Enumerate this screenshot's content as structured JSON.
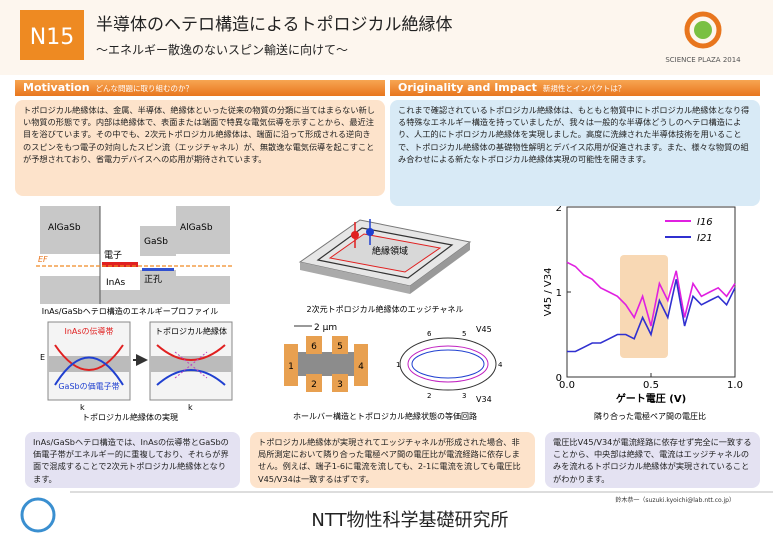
{
  "header": {
    "badge": "N15",
    "title": "半導体のヘテロ構造によるトポロジカル絶縁体",
    "subtitle": "～エネルギー散逸のないスピン輸送に向けて～",
    "logo": "SCIENCE PLAZA 2014"
  },
  "motivation": {
    "heading": "Motivation",
    "subheading": "どんな問題に取り組むのか？",
    "text": "トポロジカル絶縁体は、金属、半導体、絶縁体といった従来の物質の分類に当てはまらない新しい物質の形態です。内部は絶縁体で、表面または端面で特異な電気伝導を示すことから、最近注目を浴びています。その中でも、2次元トポロジカル絶縁体は、端面に沿って形成される逆向きのスピンをもつ電子の対向したスピン流（エッジチャネル）が、無散逸な電気伝導を起こすことが予想されており、省電力デバイスへの応用が期待されています。"
  },
  "originality": {
    "heading": "Originality and Impact",
    "subheading": "新規性とインパクトは？",
    "text": "これまで確認されているトポロジカル絶縁体は、もともと物質中にトポロジカル絶縁体となり得る特殊なエネルギー構造を持っていましたが、我々は一般的な半導体どうしのヘテロ構造により、人工的にトポロジカル絶縁体を実現しました。高度に洗練された半導体技術を用いることで、トポロジカル絶縁体の基礎物性解明とデバイス応用が促進されます。また、様々な物質の組み合わせによる新たなトポロジカル絶縁体実現の可能性を開きます。"
  },
  "figures": {
    "band": {
      "labels": [
        "AlGaSb",
        "GaSb",
        "AlGaSb",
        "電子",
        "正孔",
        "InAs",
        "EF"
      ],
      "caption": "InAs/GaSbヘテロ構造のエネルギープロファイル"
    },
    "topo": {
      "labels": [
        "InAsの伝導帯",
        "GaSbの価電子帯",
        "E",
        "k",
        "トポロジカル絶縁体",
        "k"
      ],
      "caption": "トポロジカル絶縁体の実現"
    },
    "edge": {
      "labels": [
        "絶縁領域"
      ],
      "caption": "2次元トポロジカル絶縁体のエッジチャネル"
    },
    "hallbar": {
      "scale": "2 μm",
      "contacts": [
        "1",
        "2",
        "3",
        "4",
        "5",
        "6"
      ],
      "circuit": [
        "1",
        "2",
        "3",
        "4",
        "5",
        "6",
        "V45",
        "V34"
      ],
      "caption": "ホールバー構造とトポロジカル絶縁状態の等価回路"
    },
    "chart_caption": "隣り合った電極ペア間の電圧比"
  },
  "chart_data": {
    "type": "line",
    "x_label": "ゲート電圧 (V)",
    "y_label": "V45 / V34",
    "x": [
      0,
      0.05,
      0.1,
      0.15,
      0.2,
      0.25,
      0.3,
      0.35,
      0.4,
      0.45,
      0.5,
      0.55,
      0.6,
      0.65,
      0.7,
      0.75,
      0.8,
      0.85,
      0.9,
      0.95,
      1.0
    ],
    "series": [
      {
        "name": "I16",
        "color": "#e020e0",
        "values": [
          1.35,
          1.3,
          1.2,
          1.15,
          1.05,
          1.0,
          0.95,
          0.85,
          0.7,
          0.95,
          0.6,
          1.1,
          0.9,
          1.25,
          0.7,
          1.1,
          0.95,
          1.0,
          1.05,
          0.95,
          1.1
        ]
      },
      {
        "name": "I21",
        "color": "#3030d0",
        "values": [
          0.3,
          0.3,
          0.35,
          0.4,
          0.4,
          0.45,
          0.5,
          0.5,
          0.45,
          0.7,
          0.5,
          0.9,
          0.7,
          1.15,
          0.6,
          0.95,
          0.85,
          0.9,
          0.95,
          0.85,
          1.05
        ]
      }
    ],
    "xlim": [
      0,
      1
    ],
    "ylim": [
      0,
      2
    ],
    "xticks": [
      {
        "value": 0,
        "label": "0.0"
      },
      {
        "value": 0.5,
        "label": "0.5"
      },
      {
        "value": 1,
        "label": "1.0"
      }
    ],
    "yticks": [
      0,
      1,
      2
    ],
    "legend": "top-right"
  },
  "notes": [
    "InAs/GaSbヘテロ構造では、InAsの伝導帯とGaSbの価電子帯がエネルギー的に重複しており、それらが界面で混成することで2次元トポロジカル絶縁体となります。",
    "トポロジカル絶縁体が実現されてエッジチャネルが形成された場合、非局所測定において隣り合った電極ペア間の電圧比が電流経路に依存しません。例えば、端子1-6に電流を流しても、2-1に電流を流しても電圧比V45/V34は一致するはずです。",
    "電圧比V45/V34が電流経路に依存せず完全に一致することから、中央部は絶縁で、電流はエッジチャネルのみを流れるトポロジカル絶縁体が実現されていることがわかります。"
  ],
  "footer": {
    "institute": "NTT物性科学基礎研究所",
    "contact": "鈴木恭一（suzuki.kyoichi@lab.ntt.co.jp）"
  }
}
